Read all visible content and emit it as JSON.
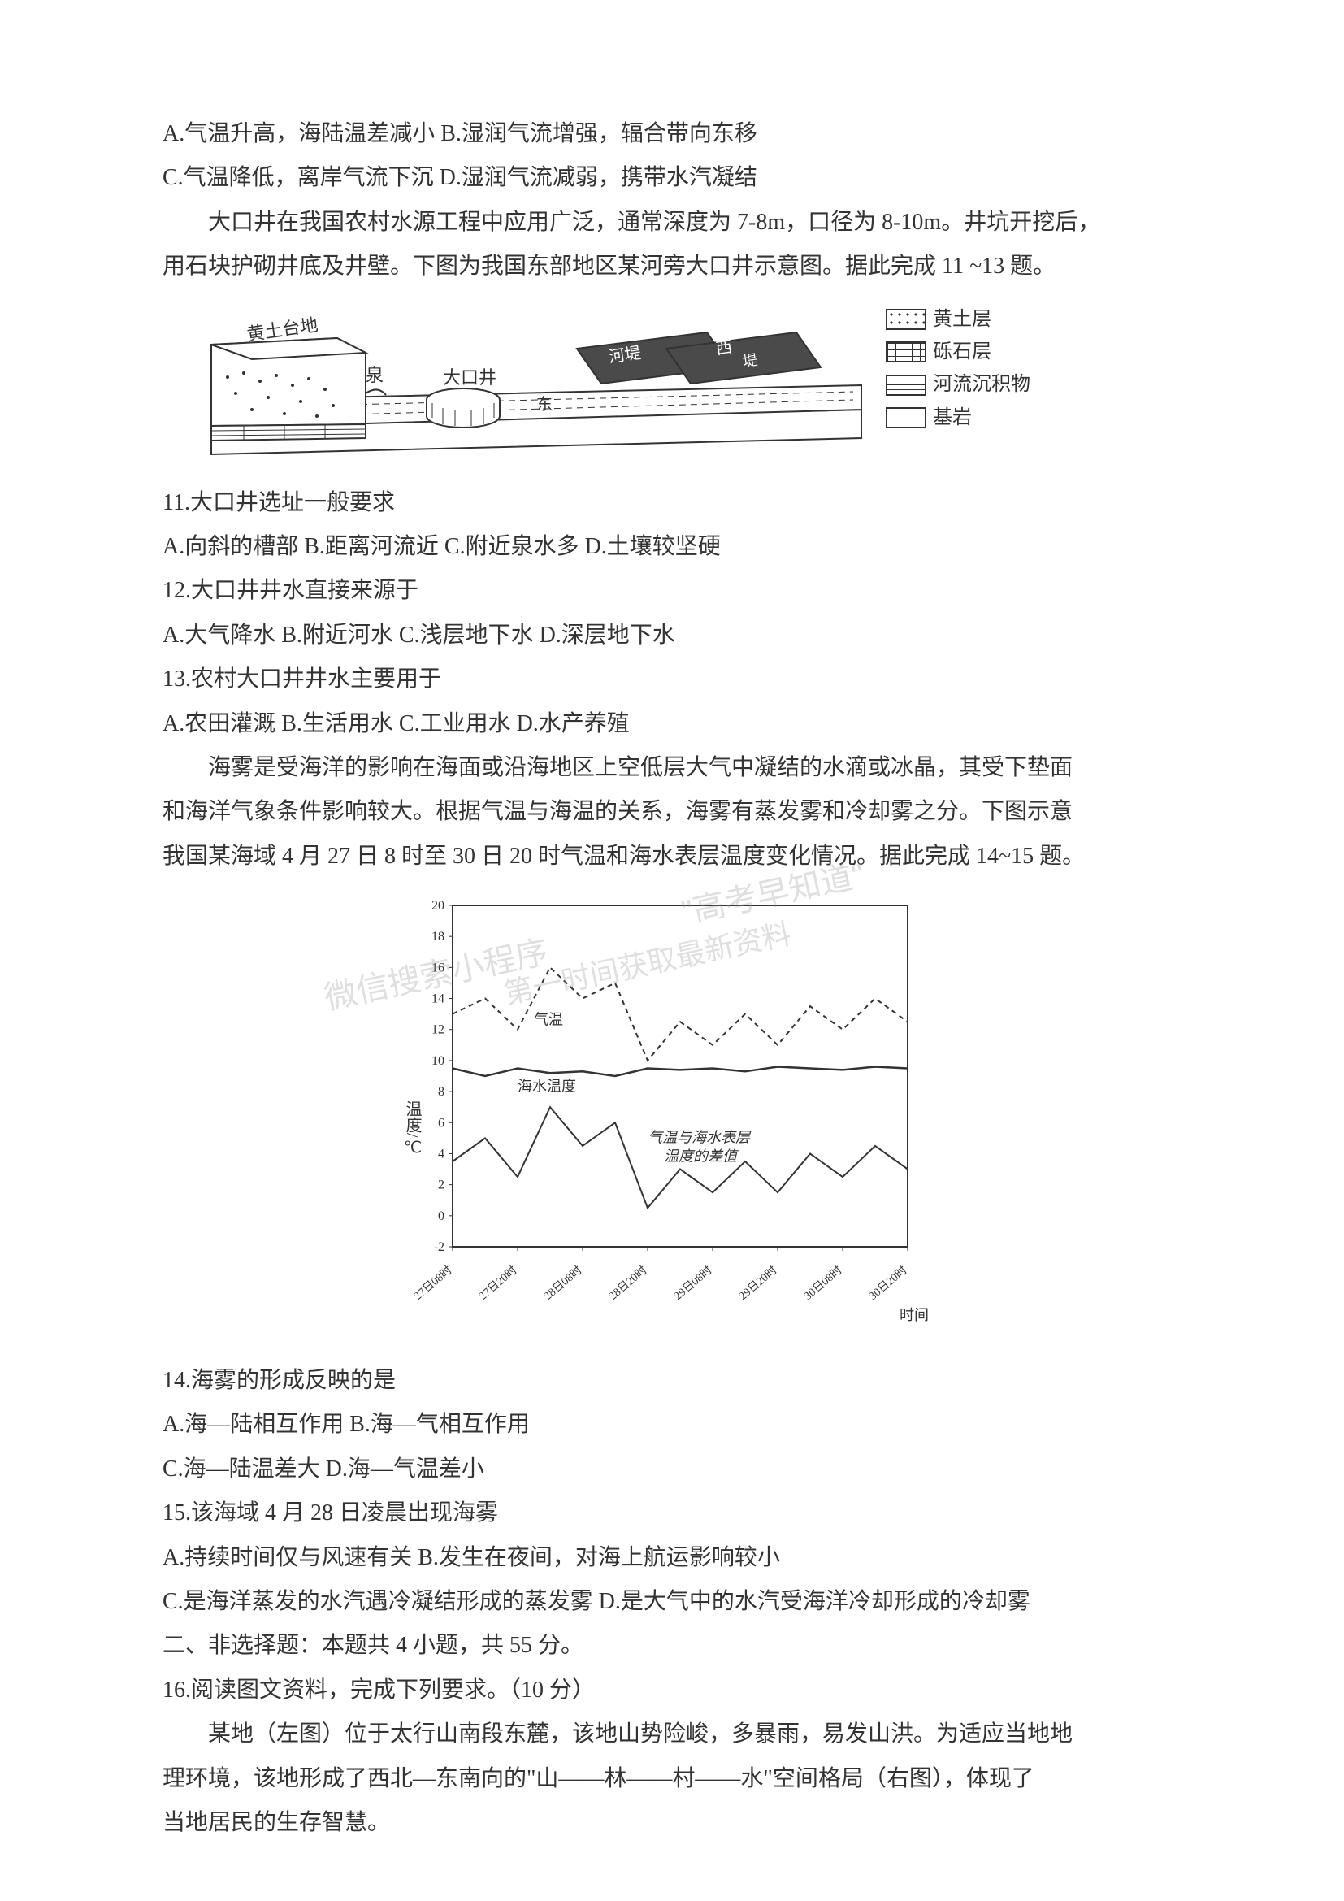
{
  "options_line1": "A.气温升高，海陆温差减小 B.湿润气流增强，辐合带向东移",
  "options_line2": "C.气温降低，离岸气流下沉 D.湿润气流减弱，携带水汽凝结",
  "passage1_line1": "大口井在我国农村水源工程中应用广泛，通常深度为 7-8m，口径为 8-10m。井坑开挖后，",
  "passage1_line2": "用石块护砌井底及井壁。下图为我国东部地区某河旁大口井示意图。据此完成 11 ~13 题。",
  "well_figure": {
    "type": "diagram",
    "labels": {
      "loess_terrace": "黄土台地",
      "spring": "泉",
      "well": "大口井",
      "dike": "河堤",
      "east": "东",
      "west": "西"
    },
    "legend": [
      {
        "pattern": "dots",
        "label": "黄土层",
        "fill": "#ffffff",
        "border": "#333333"
      },
      {
        "pattern": "grid",
        "label": "砾石层",
        "fill": "#ffffff",
        "border": "#333333"
      },
      {
        "pattern": "dashes",
        "label": "河流沉积物",
        "fill": "#ffffff",
        "border": "#333333"
      },
      {
        "pattern": "blank",
        "label": "基岩",
        "fill": "#ffffff",
        "border": "#333333"
      }
    ],
    "colors": {
      "line": "#333333",
      "fill_dark": "#4a4a4a",
      "fill_white": "#ffffff"
    }
  },
  "q11": "11.大口井选址一般要求",
  "q11_opts": "A.向斜的槽部 B.距离河流近 C.附近泉水多 D.土壤较坚硬",
  "q12": "12.大口井井水直接来源于",
  "q12_opts": "A.大气降水 B.附近河水 C.浅层地下水 D.深层地下水",
  "q13": "13.农村大口井井水主要用于",
  "q13_opts": "A.农田灌溉 B.生活用水 C.工业用水 D.水产养殖",
  "passage2_line1": "海雾是受海洋的影响在海面或沿海地区上空低层大气中凝结的水滴或冰晶，其受下垫面",
  "passage2_line2": "和海洋气象条件影响较大。根据气温与海温的关系，海雾有蒸发雾和冷却雾之分。下图示意",
  "passage2_line3": "我国某海域 4 月 27 日 8 时至 30 日 20 时气温和海水表层温度变化情况。据此完成 14~15 题。",
  "chart": {
    "type": "line",
    "ylabel": "温度/℃",
    "xlabel": "时间",
    "ylim": [
      -2,
      20
    ],
    "yticks": [
      -2,
      0,
      2,
      4,
      6,
      8,
      10,
      12,
      14,
      16,
      18,
      20
    ],
    "xticks": [
      "27日08时",
      "27日20时",
      "28日08时",
      "28日20时",
      "29日08时",
      "29日20时",
      "30日08时",
      "30日20时"
    ],
    "background_color": "#ffffff",
    "axis_color": "#333333",
    "label_fontsize": 18,
    "tick_fontsize": 14,
    "series": [
      {
        "name": "气温",
        "style": "dashed",
        "color": "#333333",
        "width": 2,
        "values": [
          13,
          14,
          12,
          16,
          14,
          15,
          10,
          12.5,
          11,
          13,
          11,
          13.5,
          12,
          14,
          12.5
        ]
      },
      {
        "name": "海水温度",
        "style": "solid",
        "color": "#333333",
        "width": 2.5,
        "values": [
          9.5,
          9,
          9.5,
          9.2,
          9.3,
          9,
          9.5,
          9.4,
          9.5,
          9.3,
          9.6,
          9.5,
          9.4,
          9.6,
          9.5
        ]
      },
      {
        "name": "气温与海水表层温度的差值",
        "style": "solid",
        "color": "#333333",
        "width": 2,
        "values": [
          3.5,
          5,
          2.5,
          7,
          4.5,
          6,
          0.5,
          3,
          1.5,
          3.5,
          1.5,
          4,
          2.5,
          4.5,
          3
        ]
      }
    ],
    "series_labels": {
      "air_temp": "气温",
      "sea_temp": "海水温度",
      "diff": "气温与海水表层",
      "diff2": "温度的差值"
    }
  },
  "q14": "14.海雾的形成反映的是",
  "q14_opts_line1": "A.海—陆相互作用 B.海—气相互作用",
  "q14_opts_line2": "C.海—陆温差大 D.海—气温差小",
  "q15": "15.该海域 4 月 28 日凌晨出现海雾",
  "q15_opts_line1": "A.持续时间仅与风速有关 B.发生在夜间，对海上航运影响较小",
  "q15_opts_line2": "C.是海洋蒸发的水汽遇冷凝结形成的蒸发雾 D.是大气中的水汽受海洋冷却形成的冷却雾",
  "section2": "二、非选择题：本题共 4 小题，共 55 分。",
  "q16": "16.阅读图文资料，完成下列要求。（10 分）",
  "passage3_line1": "某地（左图）位于太行山南段东麓，该地山势险峻，多暴雨，易发山洪。为适应当地地",
  "passage3_line2": "理环境，该地形成了西北—东南向的\"山——林——村——水\"空间格局（右图），体现了",
  "passage3_line3": "当地居民的生存智慧。",
  "watermarks": {
    "wm1": "微信搜索小程序",
    "wm2": "\"高考早知道\"",
    "wm3": "第一时间获取最新资料"
  }
}
